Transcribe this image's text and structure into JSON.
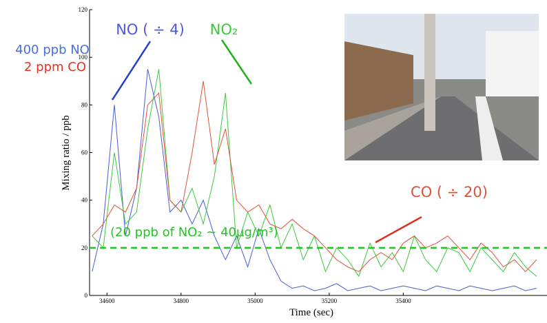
{
  "chart_data": {
    "type": "line",
    "x_label": "Time (sec)",
    "y_label": "Mixing ratio / ppb",
    "x": [
      34560,
      34590,
      34620,
      34650,
      34680,
      34710,
      34740,
      34770,
      34800,
      34830,
      34860,
      34890,
      34920,
      34950,
      34980,
      35010,
      35040,
      35070,
      35100,
      35130,
      35160,
      35190,
      35220,
      35250,
      35280,
      35310,
      35340,
      35370,
      35400,
      35430,
      35460,
      35490,
      35520,
      35550,
      35580,
      35610,
      35640,
      35670,
      35700,
      35730,
      35760
    ],
    "series": [
      {
        "name": "NO ( ÷ 4)",
        "color": "#4a5bd8",
        "values": [
          10,
          30,
          80,
          25,
          45,
          95,
          75,
          35,
          40,
          30,
          40,
          25,
          15,
          25,
          12,
          28,
          15,
          6,
          3,
          4,
          2,
          3,
          5,
          2,
          3,
          4,
          2,
          3,
          4,
          3,
          2,
          4,
          3,
          2,
          4,
          3,
          2,
          3,
          4,
          2,
          3
        ]
      },
      {
        "name": "NO₂",
        "color": "#3cc83c",
        "values": [
          25,
          20,
          60,
          30,
          35,
          70,
          95,
          40,
          35,
          45,
          30,
          50,
          85,
          20,
          35,
          25,
          38,
          20,
          30,
          15,
          25,
          10,
          20,
          15,
          8,
          22,
          12,
          18,
          10,
          25,
          15,
          10,
          20,
          18,
          10,
          20,
          15,
          10,
          18,
          12,
          8
        ]
      },
      {
        "name": "CO ( ÷ 20)",
        "color": "#e0503a",
        "values": [
          25,
          30,
          38,
          35,
          45,
          80,
          85,
          40,
          35,
          60,
          90,
          55,
          70,
          40,
          35,
          38,
          30,
          28,
          32,
          28,
          25,
          20,
          15,
          12,
          10,
          15,
          18,
          15,
          22,
          25,
          20,
          22,
          25,
          20,
          15,
          22,
          18,
          12,
          15,
          10,
          15
        ]
      }
    ],
    "reference_line": {
      "value": 20,
      "color": "#22c422",
      "label": "(20 ppb of NO₂ ~ 40µg/m³)"
    },
    "annotations": [
      {
        "text": "400 ppb NO",
        "color": "#4a6ee0"
      },
      {
        "text": "2 ppm CO",
        "color": "#e83020"
      }
    ],
    "xlim": [
      34553,
      35788
    ],
    "ylim": [
      0,
      120
    ],
    "xticks": [
      34600,
      34800,
      35000,
      35200,
      35400
    ],
    "yticks": [
      0,
      20,
      40,
      60,
      80,
      100,
      120
    ]
  }
}
